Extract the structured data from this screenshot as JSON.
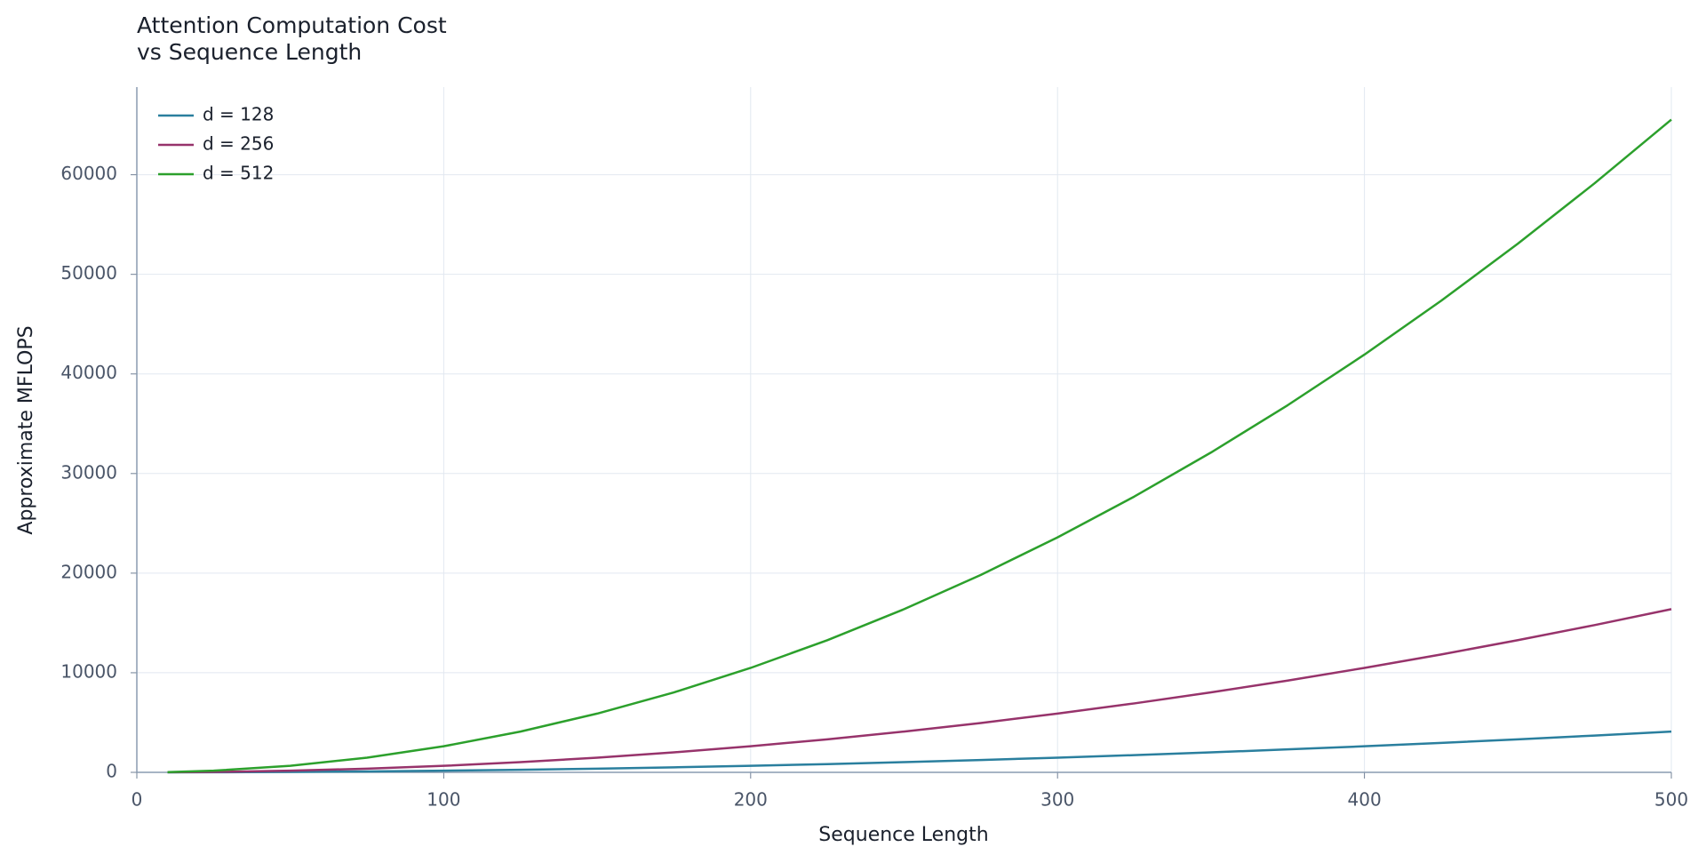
{
  "chart_data": {
    "type": "line",
    "title": [
      "Attention Computation Cost",
      "vs Sequence Length"
    ],
    "xlabel": "Sequence Length",
    "ylabel": "Approximate MFLOPS",
    "x": [
      10,
      25,
      50,
      75,
      100,
      125,
      150,
      175,
      200,
      225,
      250,
      275,
      300,
      325,
      350,
      375,
      400,
      425,
      450,
      475,
      500
    ],
    "series": [
      {
        "name": "d = 128",
        "color": "#2a7f9e",
        "values": [
          2,
          10,
          41,
          92,
          164,
          256,
          369,
          502,
          655,
          829,
          1024,
          1239,
          1475,
          1731,
          2007,
          2304,
          2621,
          2959,
          3318,
          3697,
          4096
        ]
      },
      {
        "name": "d = 256",
        "color": "#97336b",
        "values": [
          7,
          41,
          164,
          369,
          655,
          1024,
          1475,
          2007,
          2621,
          3318,
          4096,
          4956,
          5898,
          6922,
          8028,
          9216,
          10486,
          11837,
          13271,
          14787,
          16384
        ]
      },
      {
        "name": "d = 512",
        "color": "#2ca02c",
        "values": [
          26,
          164,
          655,
          1475,
          2621,
          4096,
          5898,
          8028,
          10486,
          13271,
          16384,
          19825,
          23593,
          27689,
          32113,
          36864,
          41943,
          47350,
          53084,
          59146,
          65536
        ]
      }
    ],
    "xlim": [
      0,
      500
    ],
    "xticks": [
      0,
      100,
      200,
      300,
      400,
      500
    ],
    "ylim": [
      0,
      68800
    ],
    "yticks": [
      0,
      10000,
      20000,
      30000,
      40000,
      50000,
      60000
    ],
    "grid": true,
    "legend": "upper-left"
  }
}
